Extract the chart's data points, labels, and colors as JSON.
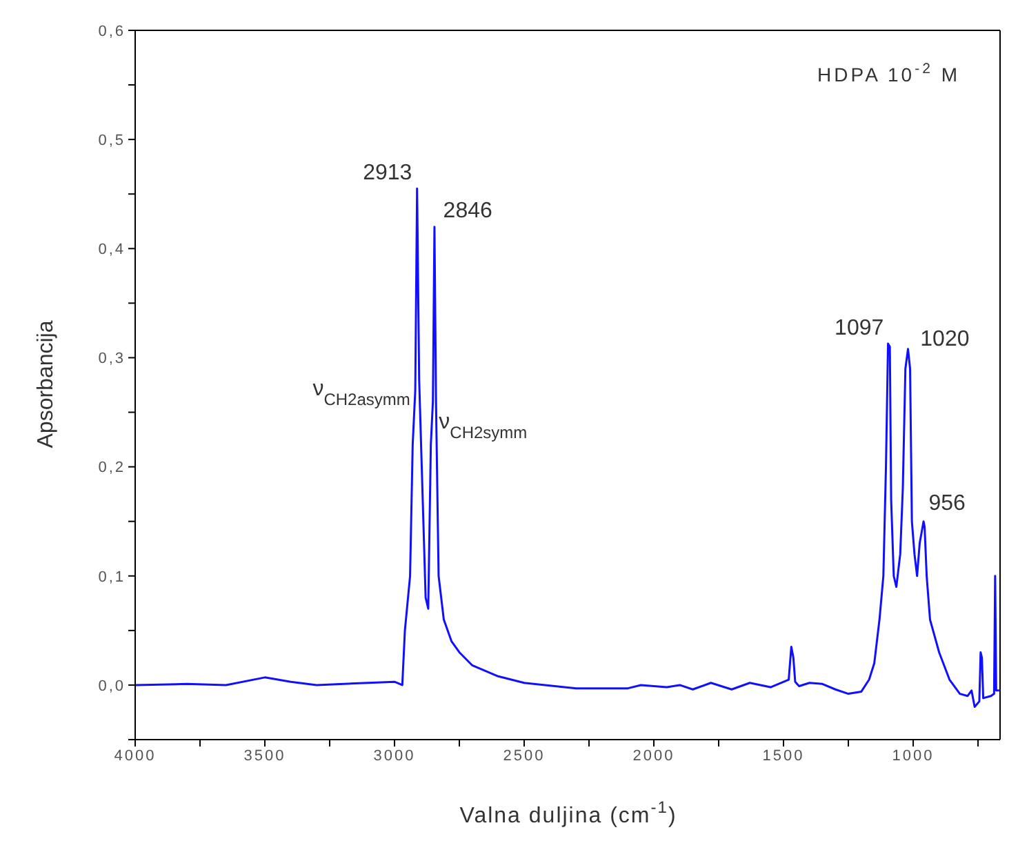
{
  "chart_data": {
    "type": "line",
    "xlabel": "Valna duljina (cm$^{-1}$)",
    "ylabel": "Apsorbancija",
    "xlim": [
      4000,
      665
    ],
    "ylim": [
      -0.05,
      0.6
    ],
    "xticks": [
      4000,
      {
        "value": 3750,
        "label": null
      },
      3500,
      {
        "value": 3250,
        "label": null
      },
      3000,
      {
        "value": 2750,
        "label": null
      },
      2500,
      {
        "value": 2250,
        "label": null
      },
      2000,
      {
        "value": 1750,
        "label": null
      },
      1500,
      {
        "value": 1250,
        "label": null
      },
      1000,
      {
        "value": 750,
        "label": null
      }
    ],
    "yticks": [
      {
        "value": -0.05,
        "label": null
      },
      {
        "value": 0,
        "label": "0,0"
      },
      {
        "value": 0.05,
        "label": null
      },
      {
        "value": 0.1,
        "label": "0,1"
      },
      {
        "value": 0.15,
        "label": null
      },
      {
        "value": 0.2,
        "label": "0,2"
      },
      {
        "value": 0.25,
        "label": null
      },
      {
        "value": 0.3,
        "label": "0,3"
      },
      {
        "value": 0.35,
        "label": null
      },
      {
        "value": 0.4,
        "label": "0,4"
      },
      {
        "value": 0.45,
        "label": null
      },
      {
        "value": 0.5,
        "label": "0,5"
      },
      {
        "value": 0.55,
        "label": null
      },
      {
        "value": 0.6,
        "label": "0,6"
      }
    ],
    "marker": "none",
    "line_style": "solid",
    "x": [
      4000,
      3800,
      3650,
      3500,
      3400,
      3300,
      3000,
      2970,
      2960,
      2950,
      2940,
      2930,
      2920,
      2913,
      2905,
      2895,
      2880,
      2870,
      2860,
      2852,
      2846,
      2840,
      2830,
      2810,
      2780,
      2750,
      2700,
      2600,
      2500,
      2300,
      2100,
      2050,
      1950,
      1900,
      1850,
      1780,
      1700,
      1630,
      1550,
      1480,
      1470,
      1462,
      1455,
      1440,
      1400,
      1350,
      1300,
      1250,
      1200,
      1170,
      1150,
      1130,
      1115,
      1105,
      1097,
      1090,
      1085,
      1075,
      1065,
      1050,
      1040,
      1030,
      1020,
      1012,
      1005,
      995,
      985,
      975,
      960,
      956,
      948,
      935,
      900,
      860,
      820,
      790,
      775,
      763,
      745,
      740,
      735,
      730,
      700,
      688,
      684,
      680,
      668
    ],
    "series": [
      {
        "color": "#1010ff",
        "values": [
          0,
          0.001,
          0,
          0.007,
          0.003,
          0,
          0.003,
          0,
          0.05,
          0.075,
          0.1,
          0.22,
          0.27,
          0.455,
          0.28,
          0.2,
          0.08,
          0.07,
          0.22,
          0.26,
          0.42,
          0.26,
          0.1,
          0.06,
          0.04,
          0.03,
          0.018,
          0.008,
          0.002,
          -0.003,
          -0.003,
          0,
          -0.002,
          0,
          -0.004,
          0.002,
          -0.004,
          0.002,
          -0.002,
          0.005,
          0.035,
          0.025,
          0.003,
          -0.001,
          0.002,
          0.001,
          -0.004,
          -0.008,
          -0.006,
          0.005,
          0.02,
          0.06,
          0.1,
          0.2,
          0.313,
          0.31,
          0.17,
          0.1,
          0.09,
          0.12,
          0.18,
          0.29,
          0.308,
          0.29,
          0.15,
          0.12,
          0.1,
          0.13,
          0.15,
          0.145,
          0.1,
          0.06,
          0.03,
          0.005,
          -0.008,
          -0.01,
          -0.005,
          -0.02,
          -0.015,
          0.03,
          0.025,
          -0.012,
          -0.01,
          -0.008,
          0.1,
          -0.005,
          -0.005
        ]
      }
    ],
    "annotations": [
      "HDPA 10$^{-2}$ M",
      {
        "text": "2913",
        "x": 2913,
        "y": 0.455
      },
      {
        "text": "2846",
        "x": 2846,
        "y": 0.42
      },
      {
        "text": "ν$_{CH2asymm}$",
        "x": 2920,
        "y": 0.27
      },
      {
        "text": "ν$_{CH2symm}$",
        "x": 2852,
        "y": 0.26
      },
      {
        "text": "1097",
        "x": 1097,
        "y": 0.313
      },
      {
        "text": "1020",
        "x": 1020,
        "y": 0.308
      },
      {
        "text": "956",
        "x": 956,
        "y": 0.145
      }
    ]
  }
}
